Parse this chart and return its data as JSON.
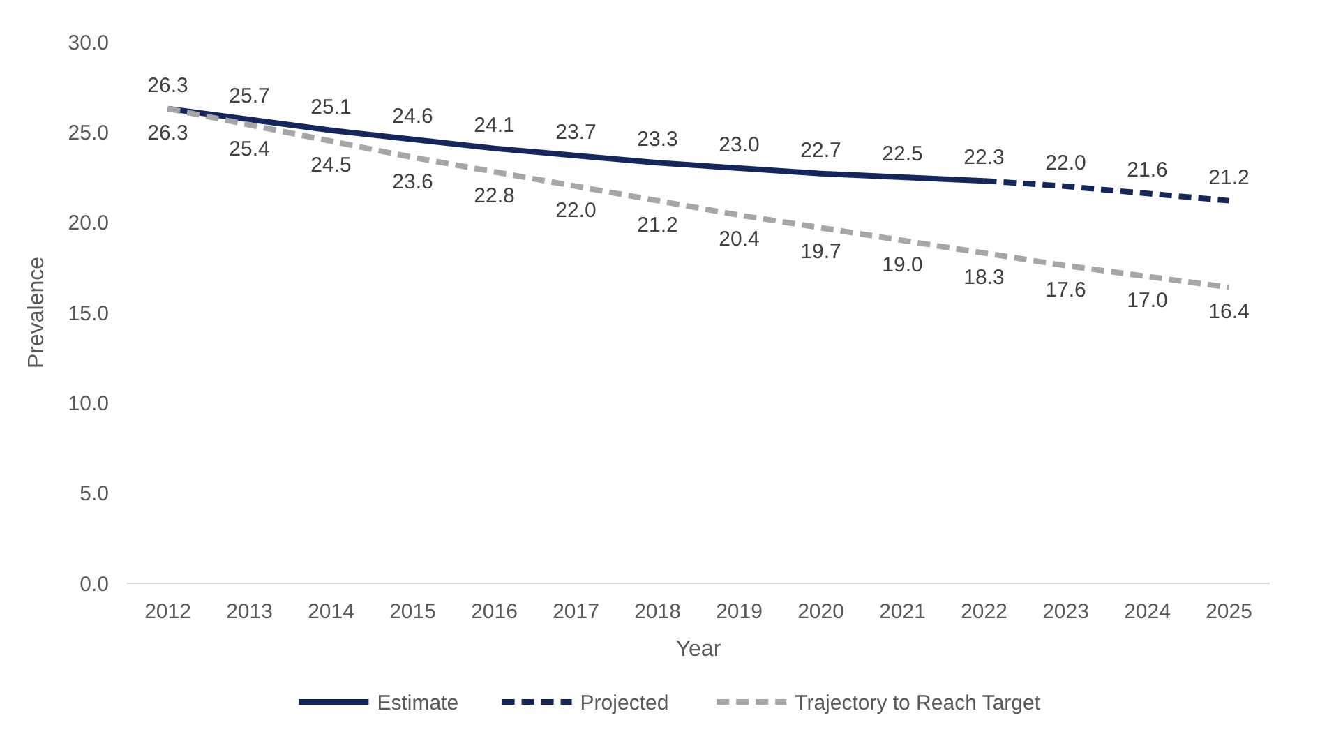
{
  "chart_data": {
    "type": "line",
    "xlabel": "Year",
    "ylabel": "Prevalence",
    "categories": [
      "2012",
      "2013",
      "2014",
      "2015",
      "2016",
      "2017",
      "2018",
      "2019",
      "2020",
      "2021",
      "2022",
      "2023",
      "2024",
      "2025"
    ],
    "ylim": [
      0,
      30
    ],
    "yticks": [
      {
        "value": 0,
        "label": "0.0"
      },
      {
        "value": 5,
        "label": "5.0"
      },
      {
        "value": 10,
        "label": "10.0"
      },
      {
        "value": 15,
        "label": "15.0"
      },
      {
        "value": 20,
        "label": "20.0"
      },
      {
        "value": 25,
        "label": "25.0"
      },
      {
        "value": 30,
        "label": "30.0"
      }
    ],
    "legend": "bottom",
    "series": [
      {
        "name": "Estimate",
        "color": "#14275c",
        "line_style": "solid",
        "values": [
          26.3,
          25.7,
          25.1,
          24.6,
          24.1,
          23.7,
          23.3,
          23.0,
          22.7,
          22.5,
          22.3,
          null,
          null,
          null
        ],
        "value_labels": [
          "26.3",
          "25.7",
          "25.1",
          "24.6",
          "24.1",
          "23.7",
          "23.3",
          "23.0",
          "22.7",
          "22.5",
          "22.3",
          null,
          null,
          null
        ]
      },
      {
        "name": "Projected",
        "color": "#14275c",
        "line_style": "dashed",
        "values": [
          null,
          null,
          null,
          null,
          null,
          null,
          null,
          null,
          null,
          null,
          22.3,
          22.0,
          21.6,
          21.2
        ],
        "value_labels": [
          null,
          null,
          null,
          null,
          null,
          null,
          null,
          null,
          null,
          null,
          null,
          "22.0",
          "21.6",
          "21.2"
        ]
      },
      {
        "name": "Trajectory to Reach Target",
        "color": "#a6a6a6",
        "line_style": "dashed",
        "values": [
          26.3,
          25.4,
          24.5,
          23.6,
          22.8,
          22.0,
          21.2,
          20.4,
          19.7,
          19.0,
          18.3,
          17.6,
          17.0,
          16.4
        ],
        "value_labels": [
          "26.3",
          "25.4",
          "24.5",
          "23.6",
          "22.8",
          "22.0",
          "21.2",
          "20.4",
          "19.7",
          "19.0",
          "18.3",
          "17.6",
          "17.0",
          "16.4"
        ]
      }
    ]
  }
}
